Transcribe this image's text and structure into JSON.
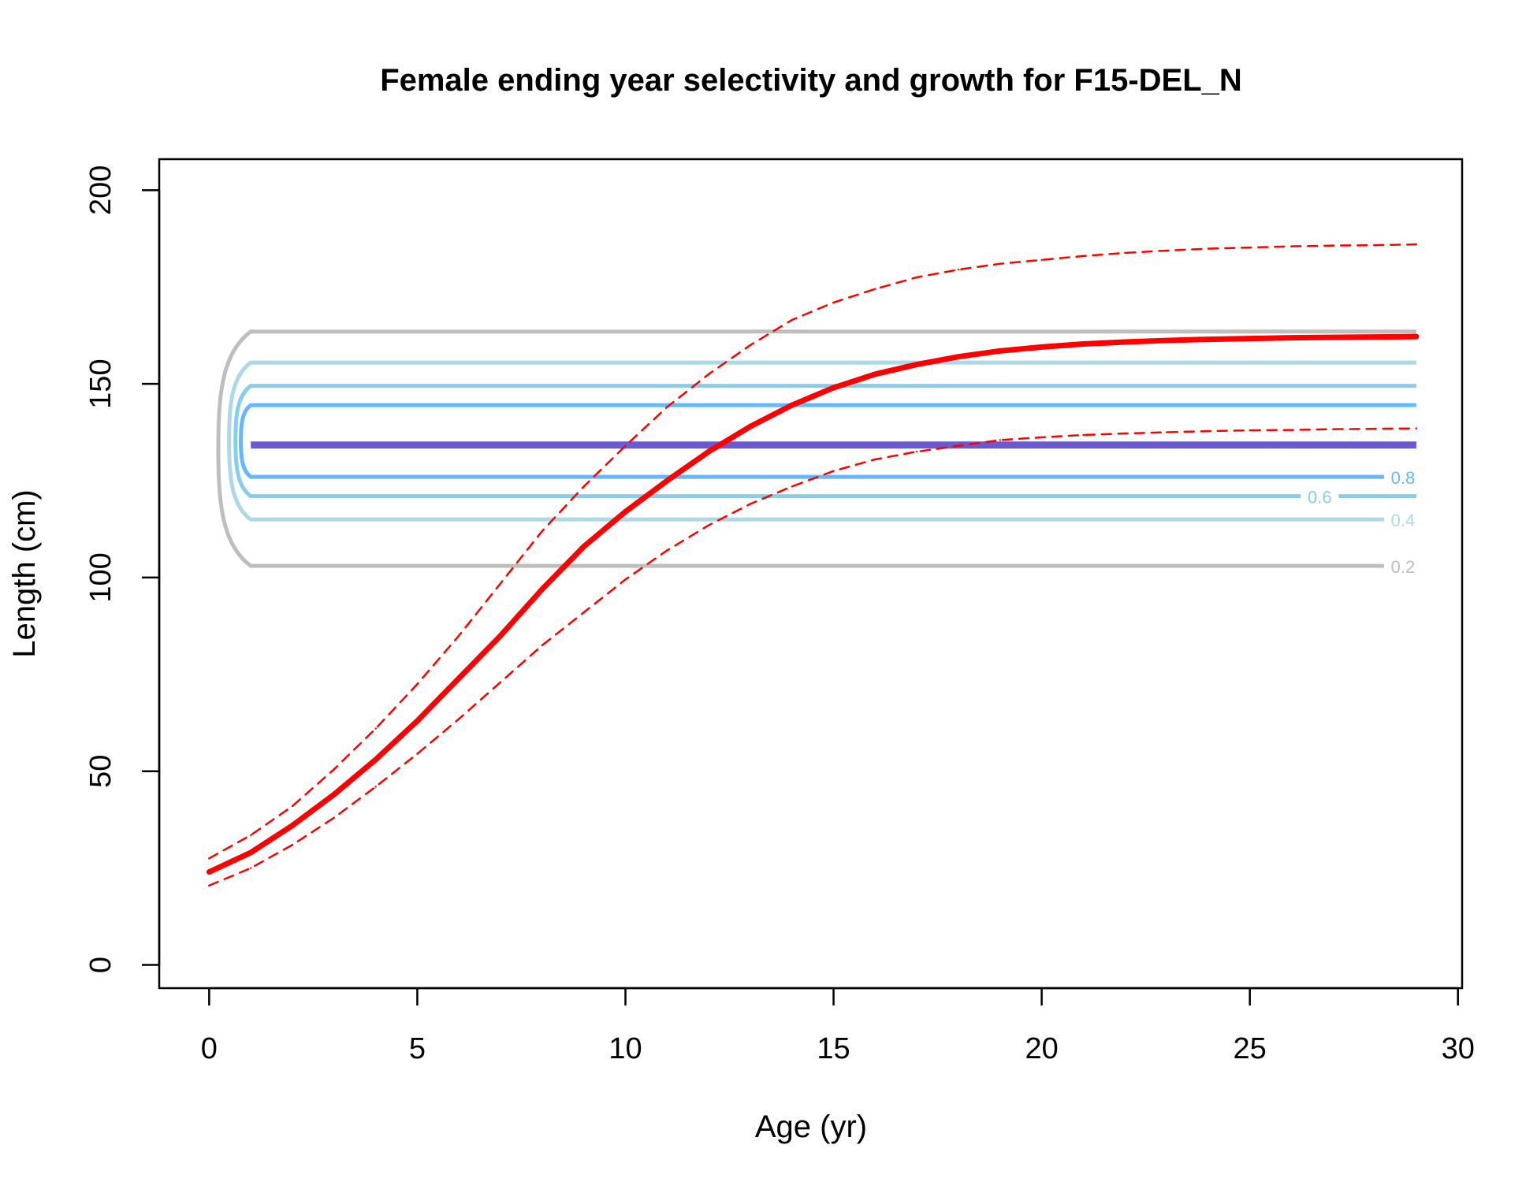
{
  "chart_data": {
    "type": "line",
    "title": "Female ending year selectivity and growth for F15-DEL_N",
    "xlabel": "Age (yr)",
    "ylabel": "Length (cm)",
    "xlim": [
      -1.2,
      30.1
    ],
    "ylim": [
      -6,
      208
    ],
    "x_ticks": [
      0,
      5,
      10,
      15,
      20,
      25,
      30
    ],
    "y_ticks": [
      0,
      50,
      100,
      150,
      200
    ],
    "x_tick_labels": [
      "0",
      "5",
      "10",
      "15",
      "20",
      "25",
      "30"
    ],
    "y_tick_labels": [
      "0",
      "50",
      "100",
      "150",
      "200"
    ],
    "grid": false,
    "legend": "none",
    "series": [
      {
        "role": "growth_mean",
        "color": "#ff0000",
        "style": "solid",
        "x": [
          0,
          1,
          2,
          3,
          4,
          5,
          6,
          7,
          8,
          9,
          10,
          11,
          12,
          13,
          14,
          15,
          16,
          17,
          18,
          19,
          20,
          21,
          22,
          23,
          24,
          25,
          26,
          27,
          28,
          29
        ],
        "values": [
          24,
          29,
          36,
          44,
          53,
          63,
          74,
          85,
          97,
          108,
          117,
          125,
          132.5,
          139,
          144.5,
          149,
          152.5,
          155,
          157,
          158.5,
          159.5,
          160.3,
          160.8,
          161.2,
          161.5,
          161.7,
          161.9,
          162,
          162.1,
          162.2
        ]
      },
      {
        "role": "growth_upper",
        "color": "#ff0000",
        "style": "dashed",
        "x": [
          0,
          1,
          2,
          3,
          4,
          5,
          6,
          7,
          8,
          9,
          10,
          11,
          12,
          13,
          14,
          15,
          16,
          17,
          18,
          19,
          20,
          21,
          22,
          23,
          24,
          25,
          26,
          27,
          28,
          29
        ],
        "values": [
          27.5,
          33.5,
          41,
          50.5,
          61,
          72.5,
          85,
          98.5,
          112,
          123.5,
          134,
          144,
          152.5,
          160,
          166.5,
          171,
          174.5,
          177.5,
          179.5,
          181,
          182,
          183,
          183.8,
          184.4,
          184.9,
          185.2,
          185.5,
          185.7,
          185.8,
          186
        ]
      },
      {
        "role": "growth_lower",
        "color": "#ff0000",
        "style": "dashed",
        "x": [
          0,
          1,
          2,
          3,
          4,
          5,
          6,
          7,
          8,
          9,
          10,
          11,
          12,
          13,
          14,
          15,
          16,
          17,
          18,
          19,
          20,
          21,
          22,
          23,
          24,
          25,
          26,
          27,
          28,
          29
        ],
        "values": [
          20.5,
          25,
          31,
          38,
          46,
          54.5,
          63.5,
          73,
          82.5,
          91,
          99.5,
          107,
          113.5,
          119,
          123.5,
          127.5,
          130.5,
          132.5,
          134,
          135.5,
          136.2,
          136.8,
          137.2,
          137.5,
          137.8,
          138,
          138.1,
          138.3,
          138.4,
          138.5
        ]
      }
    ],
    "contours": [
      {
        "level": "1",
        "color": "#6a5acd",
        "y_low": 134.2,
        "y_high": 134.2,
        "x_left": 1,
        "x_right": 29,
        "label": ""
      },
      {
        "level": "0.8",
        "color": "#63b8ff",
        "y_low": 126,
        "y_high": 144.5,
        "x_left": 1,
        "x_right": 29,
        "label": "0.8"
      },
      {
        "level": "0.6",
        "color": "#87ceeb",
        "y_low": 121,
        "y_high": 149.5,
        "x_left": 1,
        "x_right": 29,
        "label": "0.6"
      },
      {
        "level": "0.4",
        "color": "#add8e6",
        "y_low": 115,
        "y_high": 155.5,
        "x_left": 1,
        "x_right": 29,
        "label": "0.4"
      },
      {
        "level": "0.2",
        "color": "#bebebe",
        "y_low": 103,
        "y_high": 163.5,
        "x_left": 1,
        "x_right": 29,
        "label": "0.2"
      }
    ],
    "contour_label_x": {
      "0.8": 28.3,
      "0.6": 26.3,
      "0.4": 28.3,
      "0.2": 28.3
    }
  }
}
